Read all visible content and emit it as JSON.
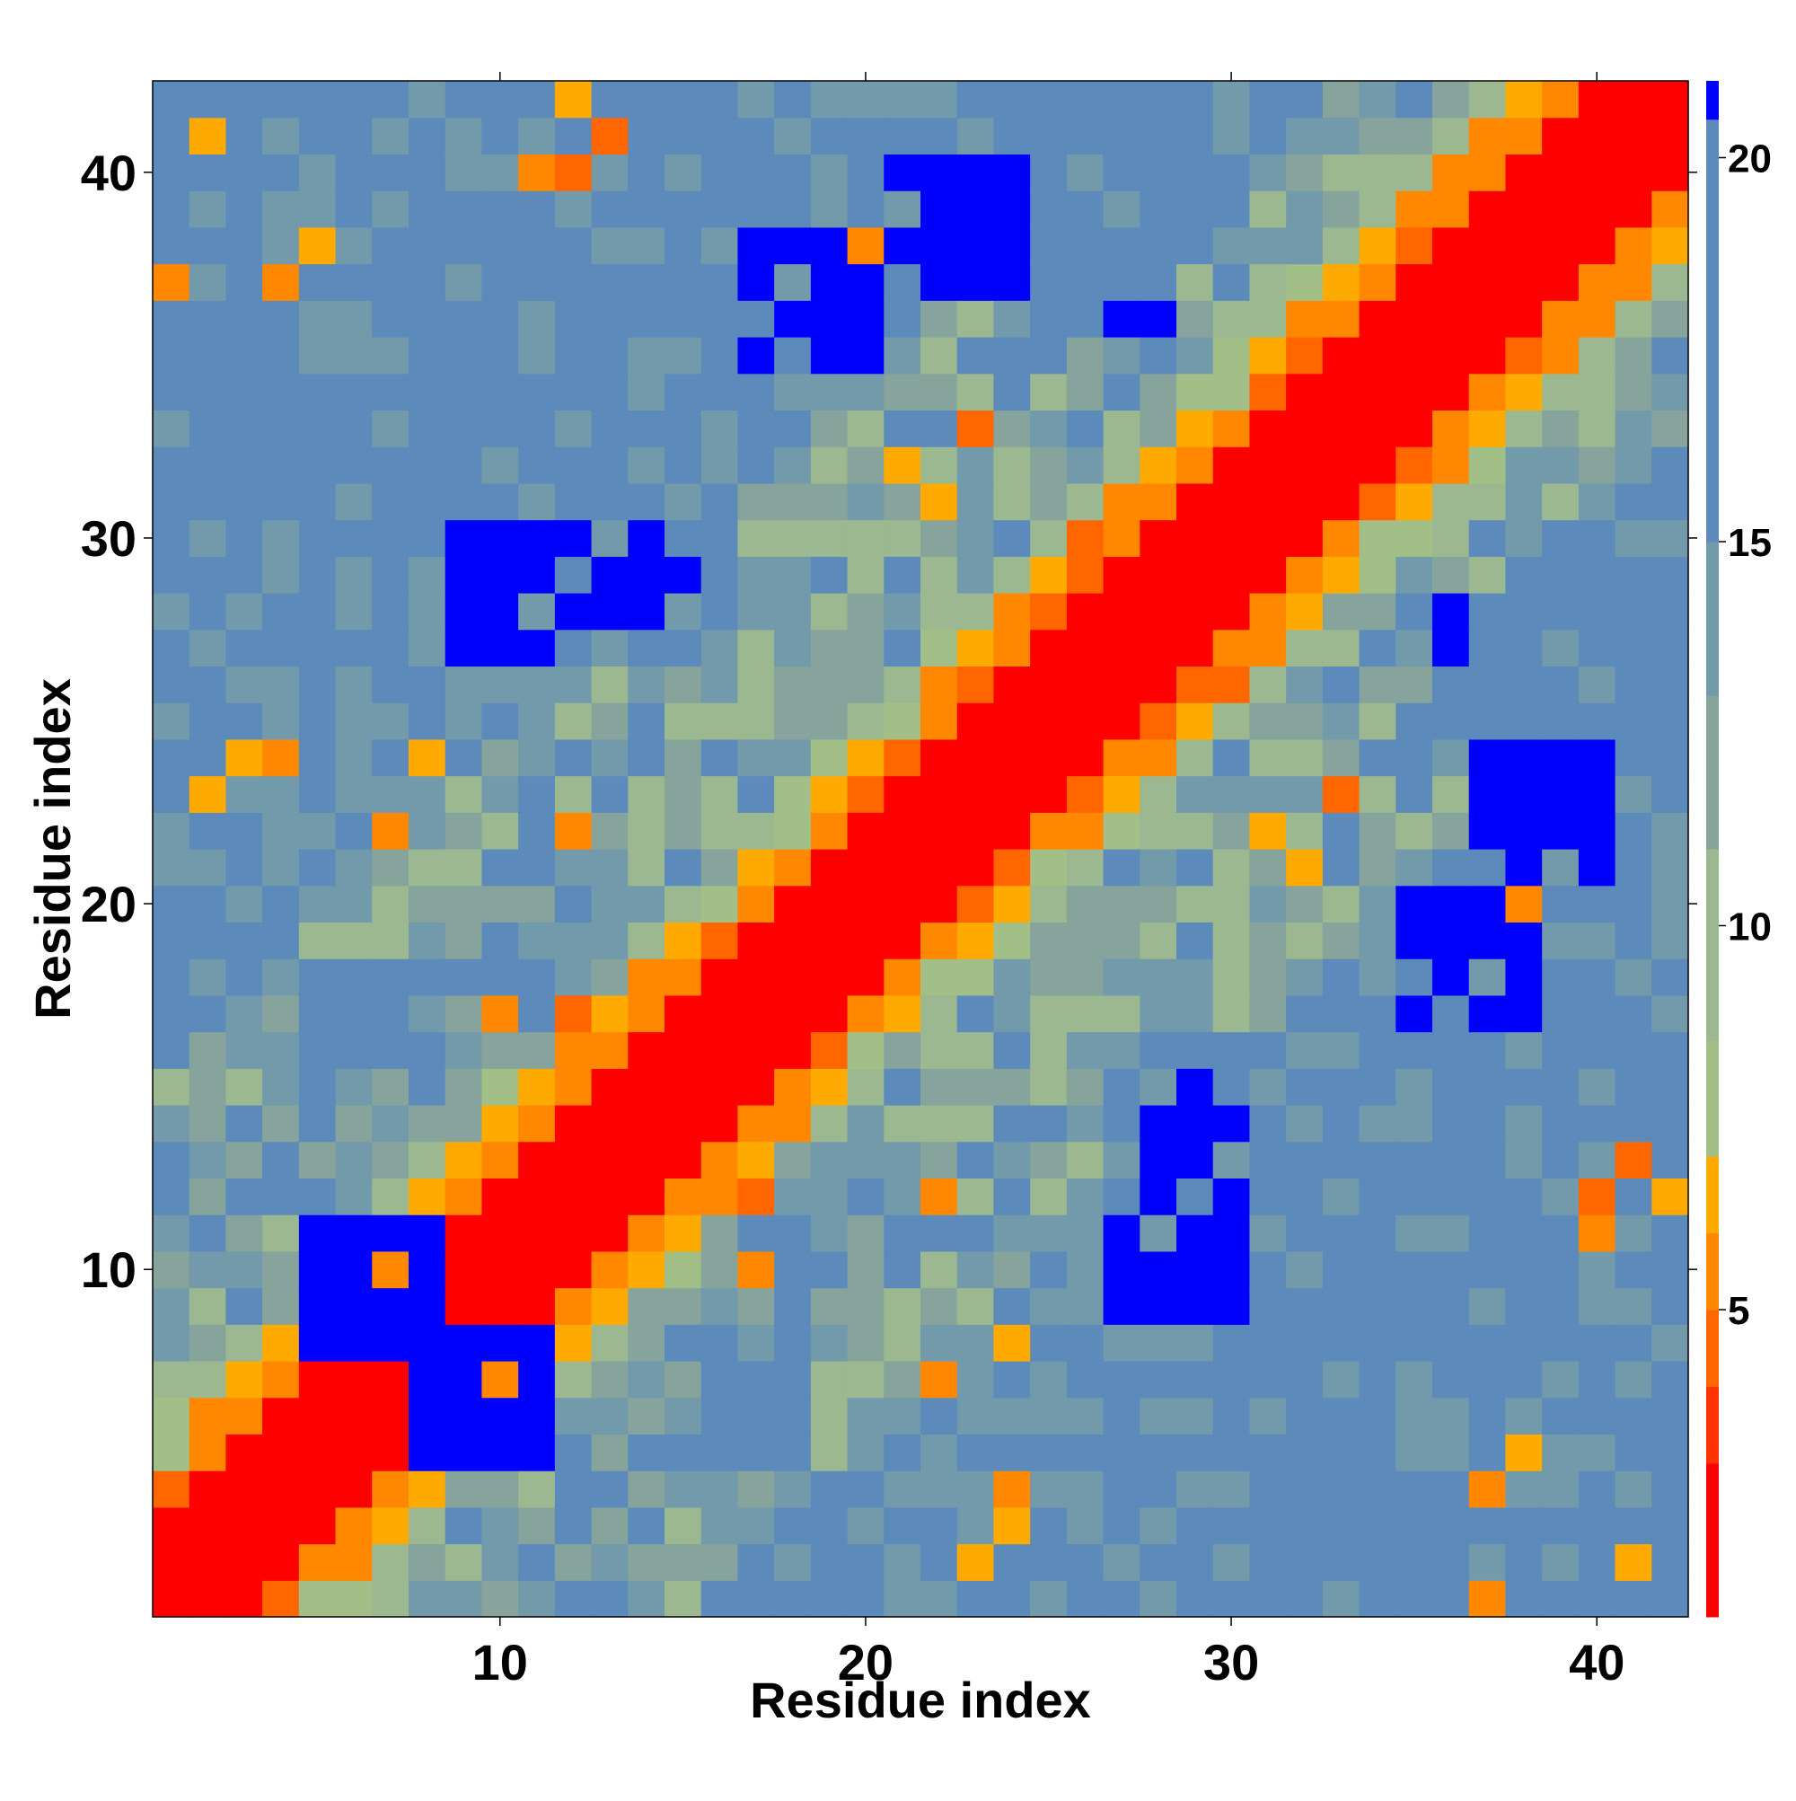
{
  "chart_data": {
    "type": "heatmap",
    "title": "",
    "xlabel": "Residue index",
    "ylabel": "Residue index",
    "x_range": [
      1,
      42
    ],
    "y_range": [
      1,
      42
    ],
    "x_ticks": [
      10,
      20,
      30,
      40
    ],
    "y_ticks": [
      10,
      20,
      30,
      40
    ],
    "colorbar": {
      "ticks": [
        5,
        10,
        15,
        20
      ],
      "range": [
        1,
        21
      ],
      "color_bands": [
        {
          "value": 1,
          "color": "#ff0000"
        },
        {
          "value": 3,
          "color": "#ff0000"
        },
        {
          "value": 4,
          "color": "#ff3300"
        },
        {
          "value": 5,
          "color": "#ff6600"
        },
        {
          "value": 6,
          "color": "#ff8800"
        },
        {
          "value": 7,
          "color": "#ffaa00"
        },
        {
          "value": 8.5,
          "color": "#a3bf88"
        },
        {
          "value": 11,
          "color": "#9bb890"
        },
        {
          "value": 13,
          "color": "#86a39c"
        },
        {
          "value": 15,
          "color": "#739aaa"
        },
        {
          "value": 17,
          "color": "#5b8abb"
        },
        {
          "value": 20.5,
          "color": "#5b8abb"
        },
        {
          "value": 21,
          "color": "#0000ff"
        }
      ]
    },
    "features": {
      "helix_a": {
        "start": 5,
        "end": 18
      },
      "helix_b": {
        "start": 24,
        "end": 42
      },
      "pairs": [
        {
          "a": 5,
          "b": 11,
          "len": 4
        },
        {
          "a": 9,
          "b": 30,
          "len": 4
        },
        {
          "a": 13,
          "b": 30,
          "len": 3
        },
        {
          "a": 17,
          "b": 38,
          "len": 4
        },
        {
          "a": 21,
          "b": 40,
          "len": 4
        },
        {
          "a": 27,
          "b": 36,
          "len": 2
        }
      ],
      "contacts": [
        {
          "i": 2,
          "j": 23,
          "d": 7
        },
        {
          "i": 3,
          "j": 24,
          "d": 7
        },
        {
          "i": 4,
          "j": 24,
          "d": 6
        },
        {
          "i": 7,
          "j": 22,
          "d": 6
        },
        {
          "i": 8,
          "j": 24,
          "d": 7
        },
        {
          "i": 10,
          "j": 17,
          "d": 6
        },
        {
          "i": 12,
          "j": 17,
          "d": 5
        },
        {
          "i": 13,
          "j": 16,
          "d": 6
        },
        {
          "i": 4,
          "j": 37,
          "d": 6
        },
        {
          "i": 5,
          "j": 38,
          "d": 7
        },
        {
          "i": 12,
          "j": 40,
          "d": 5
        },
        {
          "i": 1,
          "j": 37,
          "d": 6
        },
        {
          "i": 2,
          "j": 41,
          "d": 7
        },
        {
          "i": 12,
          "j": 22,
          "d": 6
        },
        {
          "i": 20,
          "j": 38,
          "d": 6
        },
        {
          "i": 23,
          "j": 33,
          "d": 5
        },
        {
          "i": 31,
          "j": 22,
          "d": 7
        },
        {
          "i": 30,
          "j": 26,
          "d": 5
        },
        {
          "i": 32,
          "j": 21,
          "d": 7
        },
        {
          "i": 40,
          "j": 11,
          "d": 6
        },
        {
          "i": 41,
          "j": 13,
          "d": 5
        },
        {
          "i": 42,
          "j": 12,
          "d": 7
        }
      ]
    }
  }
}
